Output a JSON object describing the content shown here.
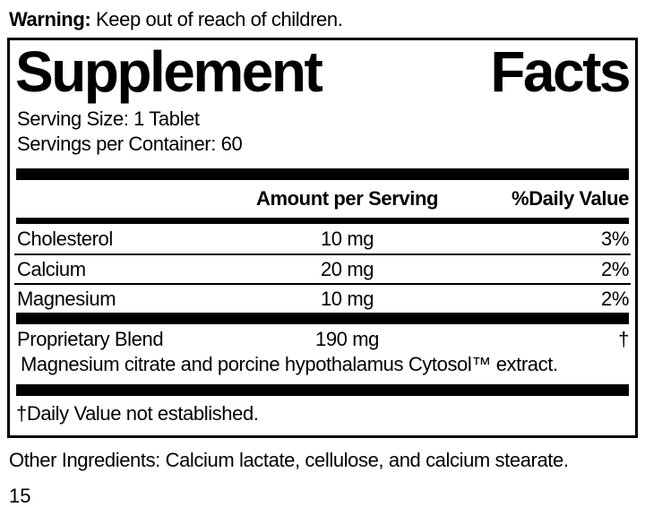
{
  "warning": {
    "label": "Warning:",
    "text": " Keep out of reach of children."
  },
  "panel": {
    "title": {
      "word1": "Supplement",
      "word2": "Facts"
    },
    "serving_size": "Serving Size: 1 Tablet",
    "servings_per_container": "Servings per Container: 60",
    "header": {
      "amount": "Amount per Serving",
      "daily_value": "%Daily Value"
    },
    "rows": [
      {
        "name": "Cholesterol",
        "amount": "10 mg",
        "dv": "3%"
      },
      {
        "name": "Calcium",
        "amount": "20 mg",
        "dv": "2%"
      },
      {
        "name": "Magnesium",
        "amount": "10 mg",
        "dv": "2%"
      }
    ],
    "blend": {
      "name": "Proprietary Blend",
      "amount": "190 mg",
      "dv": "†",
      "description": "Magnesium citrate and porcine hypothalamus Cytosol™ extract."
    },
    "footnote": "†Daily Value not established."
  },
  "other_ingredients": "Other Ingredients: Calcium lactate, cellulose, and calcium stearate.",
  "page_number": "15",
  "colors": {
    "ink": "#000000",
    "background": "#ffffff"
  }
}
